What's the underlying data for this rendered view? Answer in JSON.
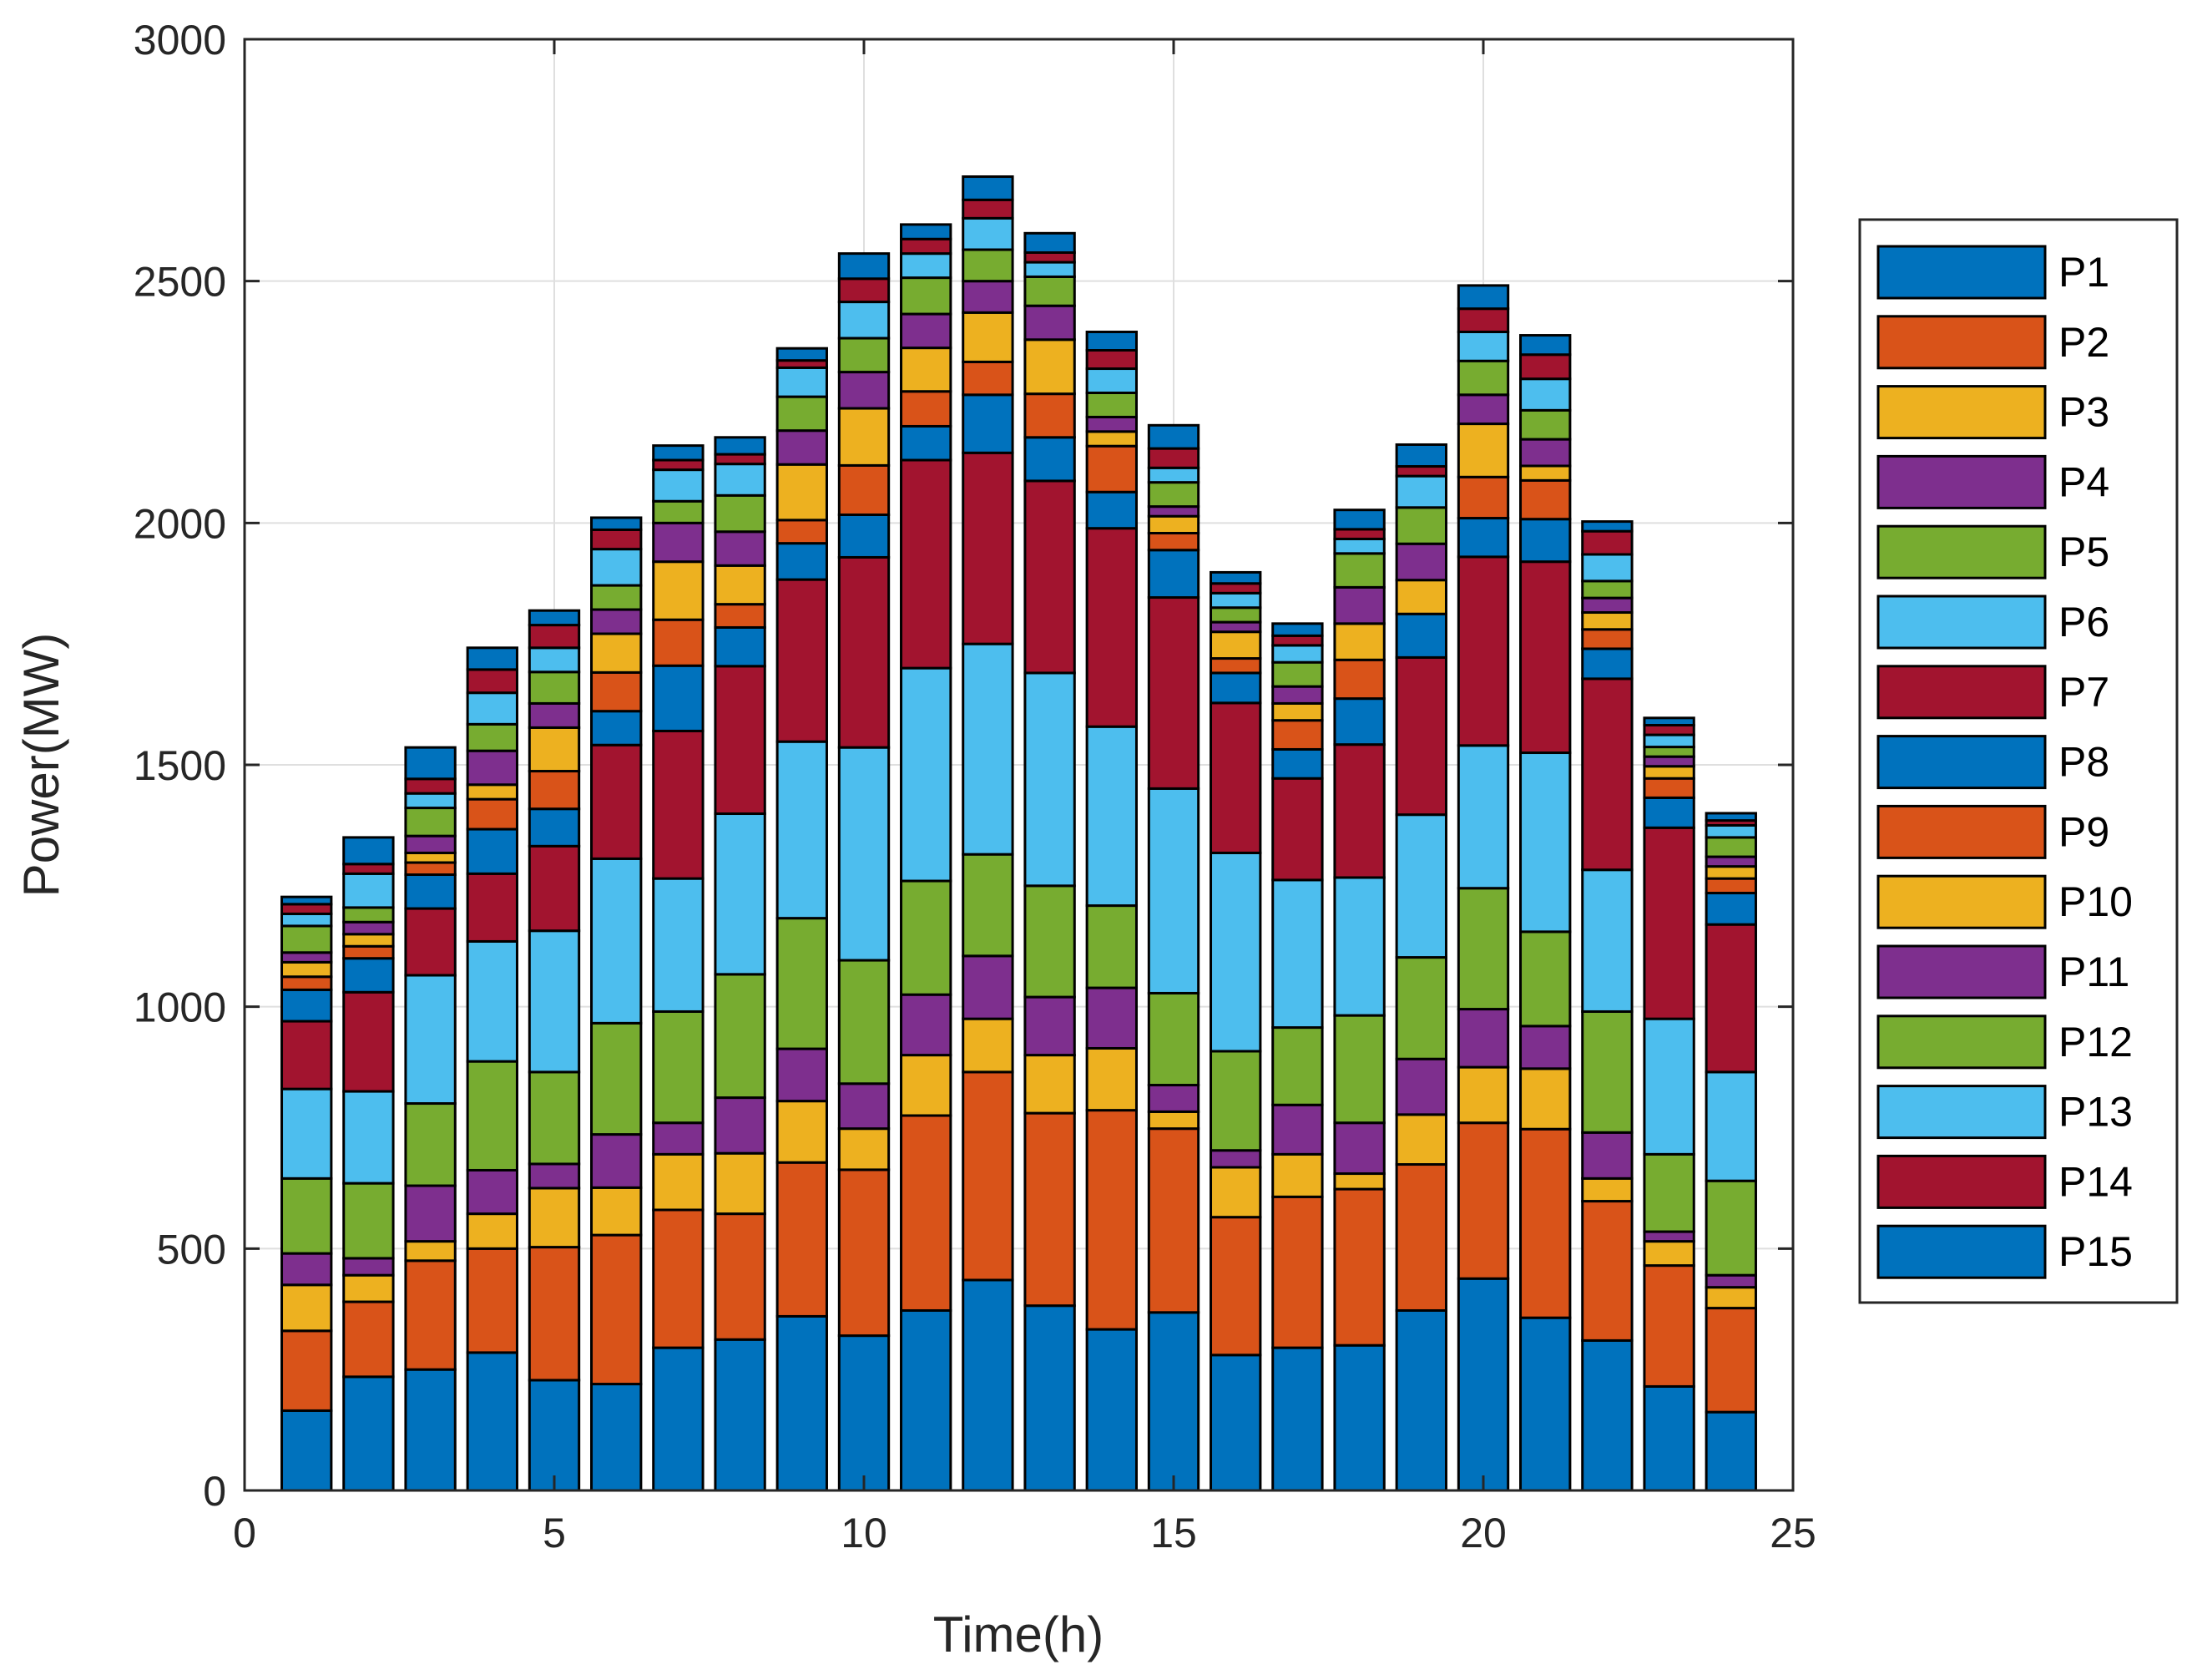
{
  "chart_data": {
    "type": "bar",
    "stacked": true,
    "title": "",
    "xlabel": "Time(h)",
    "ylabel": "Power(MW)",
    "xlim": [
      0,
      25
    ],
    "ylim": [
      0,
      3000
    ],
    "xticks": [
      0,
      5,
      10,
      15,
      20,
      25
    ],
    "yticks": [
      0,
      500,
      1000,
      1500,
      2000,
      2500,
      3000
    ],
    "grid": true,
    "legend_position": "right",
    "categories": [
      1,
      2,
      3,
      4,
      5,
      6,
      7,
      8,
      9,
      10,
      11,
      12,
      13,
      14,
      15,
      16,
      17,
      18,
      19,
      20,
      21,
      22,
      23,
      24
    ],
    "series": [
      {
        "name": "P1",
        "color": "#0072BD",
        "values": [
          165,
          235,
          250,
          285,
          228,
          220,
          295,
          312,
          360,
          320,
          372,
          435,
          382,
          333,
          368,
          280,
          295,
          300,
          372,
          438,
          357,
          310,
          215,
          162
        ]
      },
      {
        "name": "P2",
        "color": "#D95319",
        "values": [
          165,
          155,
          225,
          215,
          275,
          308,
          285,
          260,
          318,
          343,
          403,
          430,
          398,
          453,
          380,
          285,
          312,
          323,
          302,
          322,
          390,
          288,
          250,
          215
        ]
      },
      {
        "name": "P3",
        "color": "#EDB120",
        "values": [
          95,
          55,
          40,
          72,
          122,
          98,
          115,
          125,
          127,
          85,
          125,
          110,
          120,
          128,
          35,
          103,
          88,
          32,
          103,
          115,
          125,
          47,
          50,
          43
        ]
      },
      {
        "name": "P4",
        "color": "#7E2F8E",
        "values": [
          65,
          35,
          115,
          90,
          50,
          110,
          65,
          115,
          108,
          93,
          125,
          130,
          120,
          125,
          55,
          35,
          102,
          105,
          115,
          120,
          88,
          95,
          20,
          25
        ]
      },
      {
        "name": "P5",
        "color": "#77AC30",
        "values": [
          155,
          155,
          170,
          225,
          190,
          230,
          230,
          255,
          270,
          255,
          235,
          210,
          230,
          170,
          190,
          205,
          160,
          222,
          210,
          250,
          195,
          250,
          160,
          195
        ]
      },
      {
        "name": "P6",
        "color": "#4DBEEE",
        "values": [
          185,
          190,
          265,
          248,
          292,
          340,
          275,
          332,
          365,
          440,
          440,
          435,
          440,
          370,
          423,
          410,
          305,
          285,
          295,
          295,
          370,
          293,
          280,
          225
        ]
      },
      {
        "name": "P7",
        "color": "#A2142F",
        "values": [
          140,
          205,
          138,
          140,
          175,
          235,
          305,
          305,
          335,
          393,
          430,
          395,
          397,
          410,
          395,
          310,
          210,
          275,
          325,
          390,
          395,
          395,
          395,
          305
        ]
      },
      {
        "name": "P8",
        "color": "#0072BD",
        "values": [
          65,
          70,
          70,
          92,
          77,
          70,
          135,
          80,
          75,
          88,
          70,
          120,
          90,
          75,
          98,
          62,
          60,
          95,
          90,
          80,
          88,
          62,
          62,
          65
        ]
      },
      {
        "name": "P9",
        "color": "#D95319",
        "values": [
          27,
          25,
          25,
          62,
          78,
          80,
          95,
          48,
          48,
          102,
          72,
          68,
          90,
          95,
          35,
          30,
          60,
          80,
          0,
          85,
          80,
          40,
          40,
          30
        ]
      },
      {
        "name": "P10",
        "color": "#EDB120",
        "values": [
          30,
          25,
          20,
          30,
          90,
          80,
          120,
          80,
          115,
          118,
          90,
          102,
          112,
          30,
          35,
          55,
          35,
          75,
          70,
          110,
          30,
          35,
          25,
          25
        ]
      },
      {
        "name": "P11",
        "color": "#7E2F8E",
        "values": [
          20,
          25,
          35,
          70,
          50,
          50,
          80,
          70,
          70,
          75,
          70,
          65,
          70,
          30,
          20,
          20,
          35,
          75,
          75,
          60,
          55,
          30,
          20,
          20
        ]
      },
      {
        "name": "P12",
        "color": "#77AC30",
        "values": [
          55,
          30,
          58,
          55,
          65,
          50,
          45,
          75,
          70,
          70,
          75,
          65,
          60,
          50,
          50,
          30,
          50,
          70,
          75,
          70,
          60,
          35,
          20,
          40
        ]
      },
      {
        "name": "P13",
        "color": "#4DBEEE",
        "values": [
          25,
          70,
          30,
          65,
          50,
          75,
          65,
          65,
          60,
          75,
          50,
          65,
          30,
          50,
          30,
          30,
          35,
          30,
          65,
          60,
          65,
          55,
          25,
          25
        ]
      },
      {
        "name": "P14",
        "color": "#A2142F",
        "values": [
          20,
          20,
          30,
          48,
          47,
          40,
          20,
          20,
          15,
          48,
          30,
          38,
          20,
          38,
          40,
          20,
          20,
          20,
          20,
          48,
          50,
          48,
          20,
          10
        ]
      },
      {
        "name": "P15",
        "color": "#0072BD",
        "values": [
          15,
          55,
          65,
          45,
          30,
          25,
          30,
          35,
          25,
          52,
          30,
          48,
          40,
          38,
          48,
          23,
          25,
          40,
          45,
          48,
          40,
          20,
          15,
          15
        ]
      }
    ]
  }
}
